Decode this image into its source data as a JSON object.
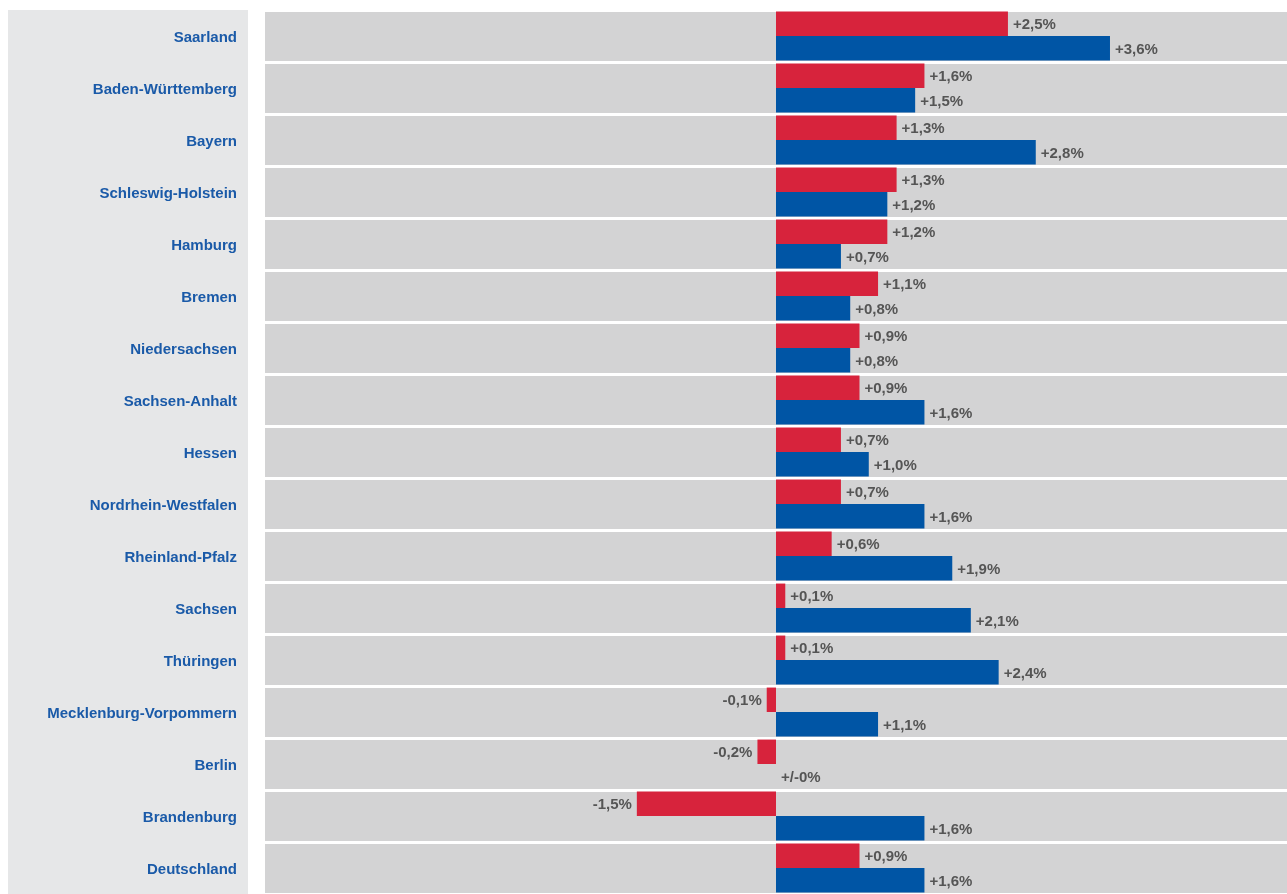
{
  "chart_data": {
    "type": "bar",
    "orientation": "horizontal",
    "categories": [
      "Saarland",
      "Baden-Württemberg",
      "Bayern",
      "Schleswig-Holstein",
      "Hamburg",
      "Bremen",
      "Niedersachsen",
      "Sachsen-Anhalt",
      "Hessen",
      "Nordrhein-Westfalen",
      "Rheinland-Pfalz",
      "Sachsen",
      "Thüringen",
      "Mecklenburg-Vorpommern",
      "Berlin",
      "Brandenburg",
      "Deutschland"
    ],
    "series": [
      {
        "color": "#d7233c",
        "values": [
          2.5,
          1.6,
          1.3,
          1.3,
          1.2,
          1.1,
          0.9,
          0.9,
          0.7,
          0.7,
          0.6,
          0.1,
          0.1,
          -0.1,
          -0.2,
          -1.5,
          0.9
        ],
        "value_labels": [
          "+2,5%",
          "+1,6%",
          "+1,3%",
          "+1,3%",
          "+1,2%",
          "+1,1%",
          "+0,9%",
          "+0,9%",
          "+0,7%",
          "+0,7%",
          "+0,6%",
          "+0,1%",
          "+0,1%",
          "-0,1%",
          "-0,2%",
          "-1,5%",
          "+0,9%"
        ]
      },
      {
        "color": "#0055a5",
        "values": [
          3.6,
          1.5,
          2.8,
          1.2,
          0.7,
          0.8,
          0.8,
          1.6,
          1.0,
          1.6,
          1.9,
          2.1,
          2.4,
          1.1,
          0.0,
          1.6,
          1.6
        ],
        "value_labels": [
          "+3,6%",
          "+1,5%",
          "+2,8%",
          "+1,2%",
          "+0,7%",
          "+0,8%",
          "+0,8%",
          "+1,6%",
          "+1,0%",
          "+1,6%",
          "+1,9%",
          "+2,1%",
          "+2,4%",
          "+1,1%",
          "+/-0%",
          "+1,6%",
          "+1,6%"
        ]
      }
    ]
  }
}
